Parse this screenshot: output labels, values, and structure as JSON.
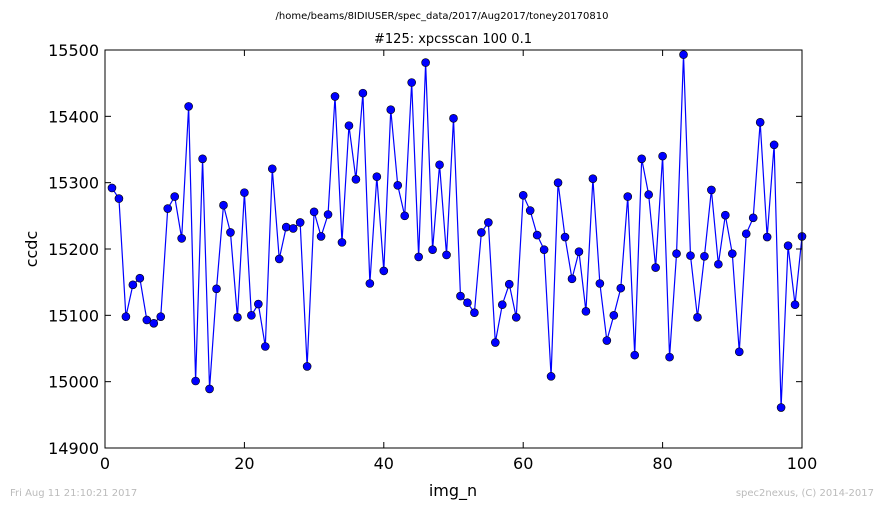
{
  "chart_data": {
    "type": "line",
    "suptitle": "/home/beams/8IDIUSER/spec_data/2017/Aug2017/toney20170810",
    "title": "#125: xpcsscan 100 0.1",
    "xlabel": "img_n",
    "ylabel": "ccdc",
    "xlim": [
      0,
      100
    ],
    "ylim": [
      14900,
      15500
    ],
    "x_ticks": [
      "0",
      "20",
      "40",
      "60",
      "80",
      "100"
    ],
    "y_ticks": [
      "14900",
      "15000",
      "15100",
      "15200",
      "15300",
      "15400",
      "15500"
    ],
    "grid": false,
    "legend": "none",
    "line_color": "#0000ff",
    "marker_color": "#0000ff",
    "series": [
      {
        "x": [
          1,
          2,
          3,
          4,
          5,
          6,
          7,
          8,
          9,
          10,
          11,
          12,
          13,
          14,
          15,
          16,
          17,
          18,
          19,
          20,
          21,
          22,
          23,
          24,
          25,
          26,
          27,
          28,
          29,
          30,
          31,
          32,
          33,
          34,
          35,
          36,
          37,
          38,
          39,
          40,
          41,
          42,
          43,
          44,
          45,
          46,
          47,
          48,
          49,
          50,
          51,
          52,
          53,
          54,
          55,
          56,
          57,
          58,
          59,
          60,
          61,
          62,
          63,
          64,
          65,
          66,
          67,
          68,
          69,
          70,
          71,
          72,
          73,
          74,
          75,
          76,
          77,
          78,
          79,
          80,
          81,
          82,
          83,
          84,
          85,
          86,
          87,
          88,
          89,
          90,
          91,
          92,
          93,
          94,
          95,
          96,
          97,
          98,
          99,
          100
        ],
        "values": [
          15292,
          15276,
          15098,
          15146,
          15156,
          15093,
          15088,
          15098,
          15261,
          15279,
          15216,
          15415,
          15001,
          15336,
          14989,
          15140,
          15266,
          15225,
          15097,
          15285,
          15100,
          15117,
          15053,
          15321,
          15185,
          15233,
          15231,
          15240,
          15023,
          15256,
          15219,
          15252,
          15430,
          15210,
          15386,
          15305,
          15435,
          15148,
          15309,
          15167,
          15410,
          15296,
          15250,
          15451,
          15188,
          15481,
          15199,
          15327,
          15191,
          15397,
          15129,
          15119,
          15104,
          15225,
          15240,
          15059,
          15116,
          15147,
          15097,
          15281,
          15258,
          15221,
          15199,
          15008,
          15300,
          15218,
          15155,
          15196,
          15106,
          15306,
          15148,
          15062,
          15100,
          15141,
          15279,
          15040,
          15336,
          15282,
          15172,
          15340,
          15037,
          15193,
          15493,
          15190,
          15097,
          15189,
          15289,
          15177,
          15251,
          15193,
          15045,
          15223,
          15247,
          15391,
          15218,
          15357,
          14961,
          15205,
          15116,
          15219
        ]
      }
    ]
  },
  "footer": {
    "left": "Fri Aug 11 21:10:21 2017",
    "right": "spec2nexus, (C) 2014-2017"
  }
}
